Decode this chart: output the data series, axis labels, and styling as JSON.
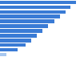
{
  "values": [
    0.95,
    0.88,
    0.82,
    0.75,
    0.68,
    0.6,
    0.53,
    0.46,
    0.39,
    0.32,
    0.22,
    0.08
  ],
  "bar_color": "#3a7bd5",
  "last_bar_color": "#a8c8f0",
  "background_color": "#ffffff",
  "xlim": [
    0,
    1.0
  ],
  "n_bars": 12
}
